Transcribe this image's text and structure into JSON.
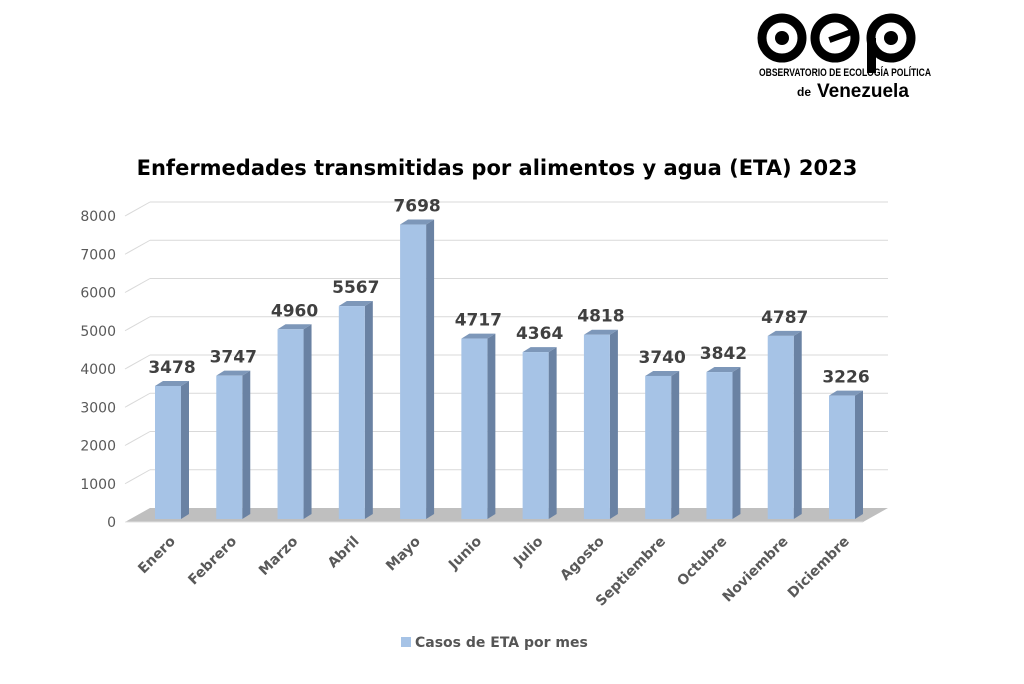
{
  "logo": {
    "mark": "oep",
    "line1": "OBSERVATORIO DE ECOLOGÍA POLÍTICA",
    "line2_prefix": "de",
    "line2": "Venezuela"
  },
  "chart_data": {
    "type": "bar",
    "style": "3d-column",
    "title": "Enfermedades transmitidas por alimentos y agua (ETA) 2023",
    "xlabel": "",
    "ylabel": "",
    "ylim": [
      0,
      8000
    ],
    "yticks": [
      0,
      1000,
      2000,
      3000,
      4000,
      5000,
      6000,
      7000,
      8000
    ],
    "grid": true,
    "legend_position": "bottom",
    "categories": [
      "Enero",
      "Febrero",
      "Marzo",
      "Abril",
      "Mayo",
      "Junio",
      "Julio",
      "Agosto",
      "Septiembre",
      "Octubre",
      "Noviembre",
      "Diciembre"
    ],
    "series": [
      {
        "name": "Casos de ETA por mes",
        "values": [
          3478,
          3747,
          4960,
          5567,
          7698,
          4717,
          4364,
          4818,
          3740,
          3842,
          4787,
          3226
        ],
        "color": "#a6c3e6",
        "side_color": "#6a82a3",
        "top_color": "#7d97b9"
      }
    ],
    "data_labels": true
  }
}
